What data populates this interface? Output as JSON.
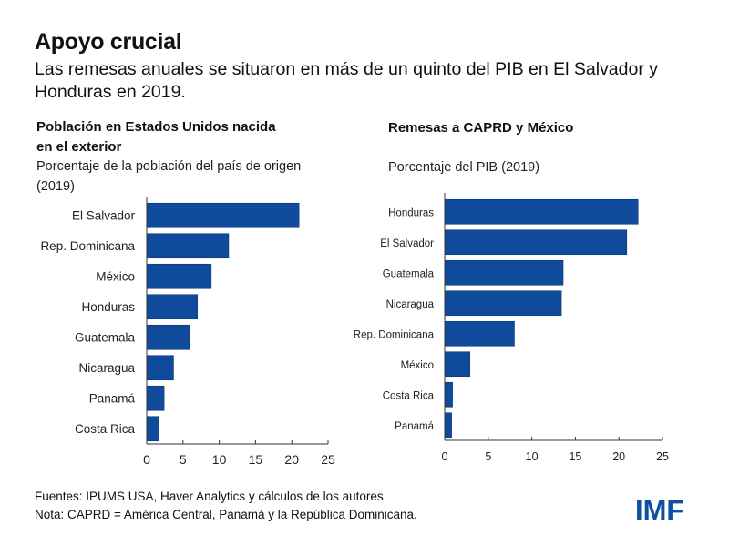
{
  "header": {
    "title": "Apoyo crucial",
    "subtitle": "Las remesas anuales se situaron en más de un quinto del PIB en El Salvador y Honduras en 2019."
  },
  "colors": {
    "bar": "#0f4b9a",
    "axis": "#333333",
    "logo": "#0f4fa0"
  },
  "chart_data": [
    {
      "type": "bar",
      "orientation": "horizontal",
      "title": "Población en Estados Unidos nacida en el exterior",
      "title_lines": [
        "Población en Estados Unidos nacida",
        "en el exterior"
      ],
      "subtitle": "Porcentaje de la población del país de origen (2019)",
      "subtitle_lines": [
        "Porcentaje de la población del país de origen",
        "(2019)"
      ],
      "categories": [
        "El Salvador",
        "Rep. Dominicana",
        "México",
        "Honduras",
        "Guatemala",
        "Nicaragua",
        "Panamá",
        "Costa Rica"
      ],
      "values": [
        21.0,
        11.3,
        8.9,
        7.0,
        5.9,
        3.7,
        2.4,
        1.7
      ],
      "xlim": [
        0,
        25
      ],
      "xticks": [
        0,
        5,
        10,
        15,
        20,
        25
      ],
      "xlabel": "",
      "ylabel": "",
      "grid": false,
      "legend": "none"
    },
    {
      "type": "bar",
      "orientation": "horizontal",
      "title": "Remesas a CAPRD y México",
      "title_lines": [
        "Remesas a CAPRD y México"
      ],
      "subtitle": "Porcentaje del PIB (2019)",
      "subtitle_lines": [
        "Porcentaje del PIB (2019)"
      ],
      "categories": [
        "Honduras",
        "El Salvador",
        "Guatemala",
        "Nicaragua",
        "Rep. Dominicana",
        "México",
        "Costa Rica",
        "Panamá"
      ],
      "values": [
        22.2,
        20.9,
        13.6,
        13.4,
        8.0,
        2.9,
        0.9,
        0.8
      ],
      "xlim": [
        0,
        25
      ],
      "xticks": [
        0,
        5,
        10,
        15,
        20,
        25
      ],
      "xlabel": "",
      "ylabel": "",
      "grid": false,
      "legend": "none"
    }
  ],
  "footer": {
    "sources": "Fuentes: IPUMS USA, Haver Analytics y cálculos de los autores.",
    "note": "Nota: CAPRD = América Central, Panamá y la República Dominicana."
  },
  "logo": {
    "text": "IMF"
  }
}
